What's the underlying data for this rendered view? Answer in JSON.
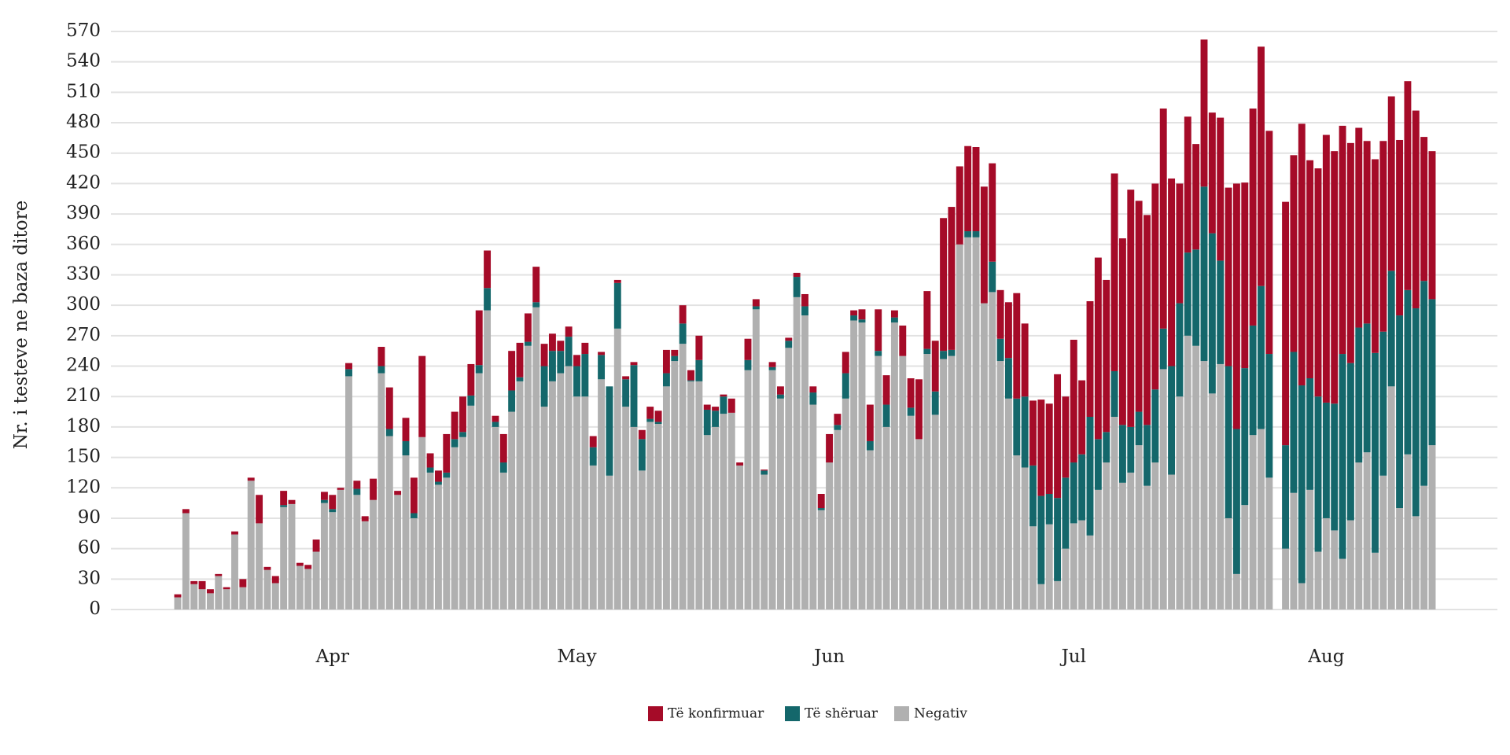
{
  "chart_data": {
    "type": "stacked_bar",
    "y_label": "Nr. i testeve ne baza ditore",
    "categories": [
      null,
      null,
      null,
      null,
      null,
      null,
      null,
      null,
      null,
      null,
      null,
      null,
      null,
      null,
      null,
      null,
      null,
      null,
      null,
      "Apr",
      null,
      null,
      null,
      null,
      null,
      null,
      null,
      null,
      null,
      null,
      null,
      null,
      null,
      null,
      null,
      null,
      null,
      null,
      null,
      null,
      null,
      null,
      null,
      null,
      null,
      null,
      null,
      null,
      null,
      "May",
      null,
      null,
      null,
      null,
      null,
      null,
      null,
      null,
      null,
      null,
      null,
      null,
      null,
      null,
      null,
      null,
      null,
      null,
      null,
      null,
      null,
      null,
      null,
      null,
      null,
      null,
      null,
      null,
      null,
      null,
      "Jun",
      null,
      null,
      null,
      null,
      null,
      null,
      null,
      null,
      null,
      null,
      null,
      null,
      null,
      null,
      null,
      null,
      null,
      null,
      null,
      null,
      null,
      null,
      null,
      null,
      null,
      null,
      null,
      null,
      null,
      "Jul",
      null,
      null,
      null,
      null,
      null,
      null,
      null,
      null,
      null,
      null,
      null,
      null,
      null,
      null,
      null,
      null,
      null,
      null,
      null,
      null,
      null,
      null,
      null,
      null,
      null,
      null,
      null,
      null,
      null,
      null,
      "Aug",
      null,
      null,
      null,
      null,
      null,
      null,
      null,
      null,
      null,
      null,
      null,
      null,
      null
    ],
    "series": [
      {
        "name": "Të konfirmuar",
        "color": "#a50b28",
        "values": [
          3,
          4,
          3,
          8,
          4,
          2,
          2,
          3,
          8,
          3,
          28,
          3,
          7,
          14,
          4,
          3,
          4,
          12,
          8,
          14,
          2,
          6,
          8,
          5,
          21,
          19,
          41,
          4,
          23,
          35,
          80,
          14,
          11,
          38,
          27,
          35,
          31,
          54,
          37,
          6,
          28,
          39,
          34,
          28,
          35,
          22,
          17,
          10,
          10,
          11,
          11,
          11,
          3,
          0,
          3,
          3,
          3,
          9,
          12,
          11,
          23,
          6,
          18,
          10,
          24,
          5,
          4,
          2,
          14,
          3,
          21,
          7,
          1,
          5,
          8,
          3,
          4,
          12,
          6,
          14,
          28,
          11,
          21,
          5,
          10,
          36,
          41,
          29,
          7,
          30,
          29,
          59,
          57,
          50,
          131,
          141,
          77,
          84,
          83,
          115,
          97,
          48,
          55,
          104,
          72,
          64,
          95,
          89,
          122,
          80,
          121,
          73,
          114,
          179,
          150,
          195,
          184,
          234,
          208,
          207,
          203,
          217,
          185,
          118,
          134,
          104,
          145,
          119,
          141,
          176,
          242,
          183,
          214,
          236,
          220,
          null,
          240,
          194,
          258,
          215,
          225,
          264,
          249,
          225,
          217,
          197,
          180,
          191,
          188,
          172,
          173,
          206,
          195,
          142,
          146
        ]
      },
      {
        "name": "Të shëruar",
        "color": "#14676b",
        "values": [
          0,
          0,
          0,
          0,
          0,
          0,
          0,
          0,
          0,
          0,
          0,
          0,
          0,
          2,
          0,
          0,
          0,
          0,
          3,
          3,
          0,
          7,
          6,
          0,
          0,
          7,
          7,
          0,
          14,
          5,
          0,
          5,
          3,
          5,
          8,
          5,
          10,
          8,
          22,
          5,
          10,
          21,
          4,
          4,
          5,
          40,
          30,
          22,
          29,
          30,
          42,
          18,
          24,
          88,
          45,
          27,
          61,
          31,
          3,
          2,
          13,
          5,
          20,
          1,
          21,
          25,
          16,
          17,
          0,
          0,
          10,
          3,
          4,
          3,
          4,
          7,
          20,
          9,
          12,
          2,
          0,
          5,
          25,
          5,
          3,
          9,
          5,
          22,
          5,
          0,
          8,
          0,
          5,
          23,
          8,
          6,
          0,
          6,
          6,
          0,
          30,
          22,
          40,
          56,
          70,
          60,
          87,
          30,
          82,
          70,
          60,
          65,
          117,
          50,
          30,
          45,
          57,
          45,
          33,
          60,
          72,
          40,
          107,
          92,
          82,
          95,
          172,
          158,
          102,
          150,
          143,
          135,
          108,
          141,
          122,
          null,
          102,
          139,
          195,
          110,
          153,
          114,
          125,
          202,
          155,
          133,
          127,
          197,
          142,
          114,
          190,
          162,
          205,
          202,
          144
        ]
      },
      {
        "name": "Negativ",
        "color": "#b0b0b0",
        "values": [
          12,
          95,
          25,
          20,
          16,
          33,
          20,
          74,
          22,
          127,
          85,
          39,
          26,
          101,
          104,
          43,
          40,
          57,
          105,
          96,
          118,
          230,
          113,
          87,
          108,
          233,
          171,
          113,
          152,
          90,
          170,
          135,
          123,
          130,
          160,
          170,
          201,
          233,
          295,
          180,
          135,
          195,
          225,
          260,
          298,
          200,
          225,
          233,
          240,
          210,
          210,
          142,
          227,
          132,
          277,
          200,
          180,
          137,
          185,
          183,
          220,
          245,
          262,
          225,
          225,
          172,
          180,
          193,
          194,
          142,
          236,
          296,
          133,
          236,
          208,
          258,
          308,
          290,
          202,
          98,
          145,
          177,
          208,
          285,
          283,
          157,
          250,
          180,
          283,
          250,
          191,
          168,
          252,
          192,
          247,
          250,
          360,
          367,
          367,
          302,
          313,
          245,
          208,
          152,
          140,
          82,
          25,
          84,
          28,
          60,
          85,
          88,
          73,
          118,
          145,
          190,
          125,
          135,
          162,
          122,
          145,
          237,
          133,
          210,
          270,
          260,
          245,
          213,
          242,
          90,
          35,
          103,
          172,
          178,
          130,
          null,
          60,
          115,
          26,
          118,
          57,
          90,
          78,
          50,
          88,
          145,
          155,
          56,
          132,
          220,
          100,
          153,
          92,
          122,
          162
        ]
      }
    ],
    "ylim": [
      0,
      570
    ],
    "yticks": [
      0,
      30,
      60,
      90,
      120,
      150,
      180,
      210,
      240,
      270,
      300,
      330,
      360,
      390,
      420,
      450,
      480,
      510,
      540,
      570
    ],
    "grid": true
  }
}
